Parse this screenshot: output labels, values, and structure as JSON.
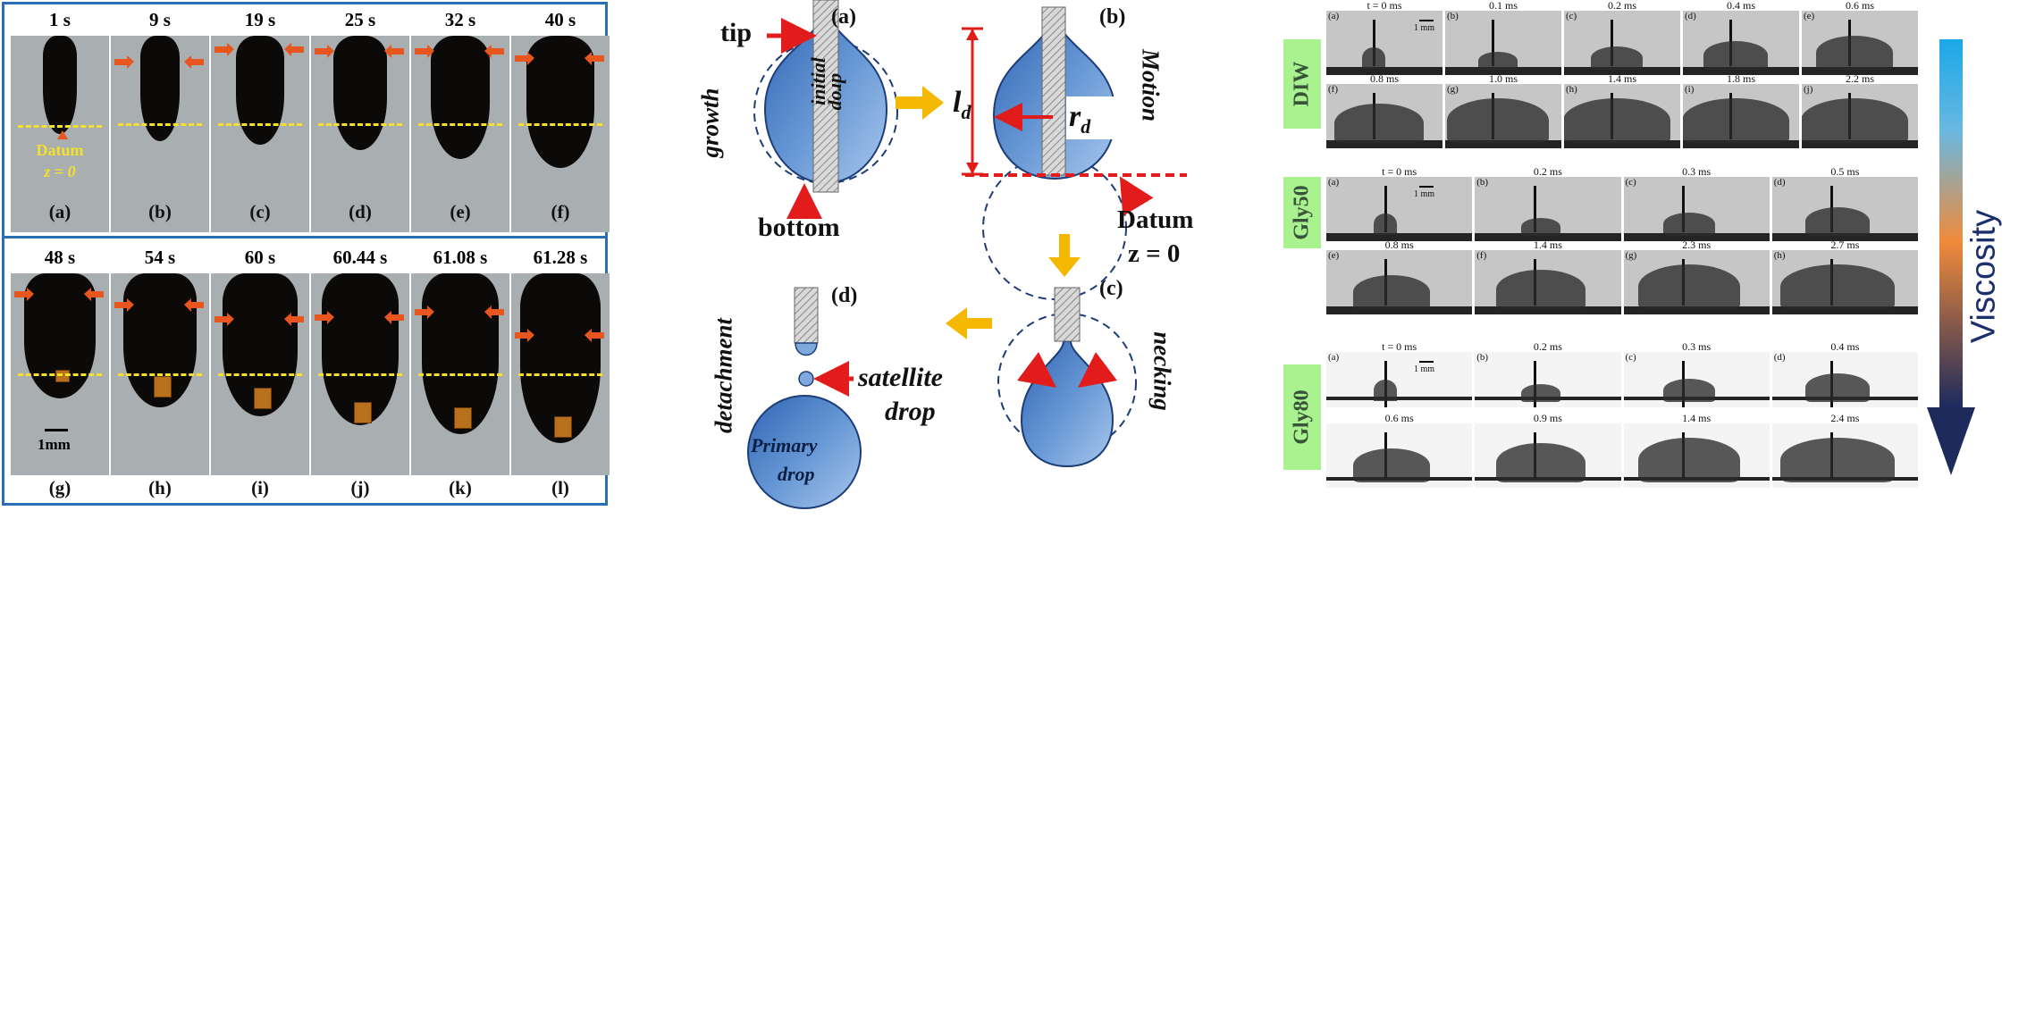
{
  "left": {
    "top_row": [
      {
        "time": "1 s",
        "label": "(a)"
      },
      {
        "time": "9 s",
        "label": "(b)"
      },
      {
        "time": "19 s",
        "label": "(c)"
      },
      {
        "time": "25 s",
        "label": "(d)"
      },
      {
        "time": "32 s",
        "label": "(e)"
      },
      {
        "time": "40 s",
        "label": "(f)"
      }
    ],
    "bottom_row": [
      {
        "time": "48 s",
        "label": "(g)"
      },
      {
        "time": "54 s",
        "label": "(h)"
      },
      {
        "time": "60 s",
        "label": "(i)"
      },
      {
        "time": "60.44 s",
        "label": "(j)"
      },
      {
        "time": "61.08 s",
        "label": "(k)"
      },
      {
        "time": "61.28 s",
        "label": "(l)"
      }
    ],
    "datum_line1": "Datum",
    "datum_line2": "z = 0",
    "scale_bar": "1mm",
    "colors": {
      "border": "#2a6fb5",
      "datum": "#f4e22a",
      "arrow": "#e8561f",
      "background": "#a9aeb0"
    }
  },
  "schematic": {
    "panel_a": "(a)",
    "panel_b": "(b)",
    "panel_c": "(c)",
    "panel_d": "(d)",
    "tip": "tip",
    "bottom": "bottom",
    "growth": "growth",
    "initial": "initial",
    "drop": "drop",
    "l_d": "l",
    "l_d_sub": "d",
    "r_d": "r",
    "r_d_sub": "d",
    "motion": "Motion",
    "datum1": "Datum",
    "datum2": "z = 0",
    "necking": "necking",
    "detachment": "detachment",
    "satellite1": "satellite",
    "satellite2": "drop",
    "primary1": "Primary",
    "primary2": "drop",
    "colors": {
      "drop": "#5b8fd0",
      "arrow_flow": "#f5b800",
      "marker": "#e21b1b"
    }
  },
  "right": {
    "groups": [
      {
        "name": "DIW",
        "rows": [
          [
            {
              "label": "(a)",
              "time": "t = 0 ms"
            },
            {
              "label": "(b)",
              "time": "0.1 ms"
            },
            {
              "label": "(c)",
              "time": "0.2 ms"
            },
            {
              "label": "(d)",
              "time": "0.4 ms"
            },
            {
              "label": "(e)",
              "time": "0.6 ms"
            }
          ],
          [
            {
              "label": "(f)",
              "time": "0.8 ms"
            },
            {
              "label": "(g)",
              "time": "1.0 ms"
            },
            {
              "label": "(h)",
              "time": "1.4 ms"
            },
            {
              "label": "(i)",
              "time": "1.8 ms"
            },
            {
              "label": "(j)",
              "time": "2.2 ms"
            }
          ]
        ],
        "scale": "1 mm"
      },
      {
        "name": "Gly50",
        "rows": [
          [
            {
              "label": "(a)",
              "time": "t = 0 ms"
            },
            {
              "label": "(b)",
              "time": "0.2 ms"
            },
            {
              "label": "(c)",
              "time": "0.3 ms"
            },
            {
              "label": "(d)",
              "time": "0.5 ms"
            }
          ],
          [
            {
              "label": "(e)",
              "time": "0.8 ms"
            },
            {
              "label": "(f)",
              "time": "1.4 ms"
            },
            {
              "label": "(g)",
              "time": "2.3 ms"
            },
            {
              "label": "(h)",
              "time": "2.7 ms"
            }
          ]
        ],
        "scale": "1 mm"
      },
      {
        "name": "Gly80",
        "rows": [
          [
            {
              "label": "(a)",
              "time": "t = 0 ms"
            },
            {
              "label": "(b)",
              "time": "0.2 ms"
            },
            {
              "label": "(c)",
              "time": "0.3 ms"
            },
            {
              "label": "(d)",
              "time": "0.4 ms"
            }
          ],
          [
            {
              "label": "",
              "time": "0.6 ms"
            },
            {
              "label": "",
              "time": "0.9 ms"
            },
            {
              "label": "",
              "time": "1.4 ms"
            },
            {
              "label": "",
              "time": "2.4 ms"
            }
          ]
        ],
        "scale": "1 mm"
      }
    ],
    "viscosity": "Viscosity",
    "colors": {
      "tag": "#a9f28f",
      "tag_text": "#38533a",
      "arrow_top": "#1aa8e8",
      "arrow_mid": "#f08a3a",
      "arrow_bottom": "#1c2a5c",
      "viscosity_text": "#1c2f6e"
    }
  }
}
